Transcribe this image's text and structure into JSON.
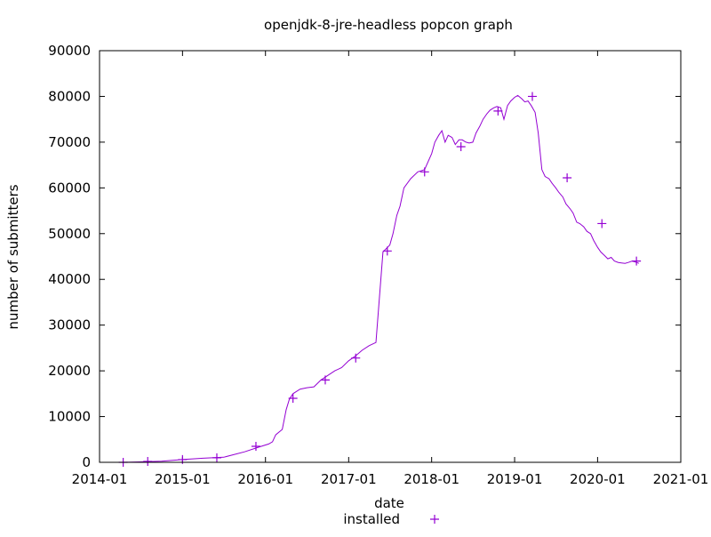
{
  "chart_data": {
    "type": "line",
    "title": "openjdk-8-jre-headless popcon graph",
    "xlabel": "date",
    "ylabel": "number of submitters",
    "xlim": [
      "2014-01",
      "2021-01"
    ],
    "ylim": [
      0,
      90000
    ],
    "x_ticks": [
      "2014-01",
      "2015-01",
      "2016-01",
      "2017-01",
      "2018-01",
      "2019-01",
      "2020-01",
      "2021-01"
    ],
    "y_ticks": [
      0,
      10000,
      20000,
      30000,
      40000,
      50000,
      60000,
      70000,
      80000,
      90000
    ],
    "grid": false,
    "legend": "bottom-center",
    "series": [
      {
        "name": "installed",
        "color": "#9400d3",
        "marker": "plus",
        "x": [
          "2014-04-15",
          "2014-07-01",
          "2014-10-01",
          "2015-01-01",
          "2015-04-01",
          "2015-07-01",
          "2015-10-01",
          "2015-12-01",
          "2016-01-15",
          "2016-02-01",
          "2016-02-15",
          "2016-03-15",
          "2016-04-01",
          "2016-04-15",
          "2016-05-01",
          "2016-06-01",
          "2016-07-01",
          "2016-08-01",
          "2016-09-01",
          "2016-10-01",
          "2016-11-01",
          "2016-12-01",
          "2017-01-01",
          "2017-02-01",
          "2017-03-01",
          "2017-04-01",
          "2017-05-01",
          "2017-06-01",
          "2017-07-01",
          "2017-07-15",
          "2017-08-01",
          "2017-08-15",
          "2017-09-01",
          "2017-10-01",
          "2017-11-01",
          "2017-12-01",
          "2018-01-01",
          "2018-01-15",
          "2018-02-01",
          "2018-02-15",
          "2018-03-01",
          "2018-03-15",
          "2018-04-01",
          "2018-04-15",
          "2018-05-01",
          "2018-05-15",
          "2018-06-01",
          "2018-06-15",
          "2018-07-01",
          "2018-07-15",
          "2018-08-01",
          "2018-08-15",
          "2018-09-01",
          "2018-09-15",
          "2018-10-01",
          "2018-10-15",
          "2018-11-01",
          "2018-11-15",
          "2018-12-01",
          "2018-12-15",
          "2019-01-01",
          "2019-01-15",
          "2019-02-01",
          "2019-02-15",
          "2019-03-01",
          "2019-03-15",
          "2019-04-01",
          "2019-04-15",
          "2019-05-01",
          "2019-05-15",
          "2019-06-01",
          "2019-06-15",
          "2019-07-01",
          "2019-07-15",
          "2019-08-01",
          "2019-08-15",
          "2019-09-01",
          "2019-09-15",
          "2019-10-01",
          "2019-10-15",
          "2019-11-01",
          "2019-11-15",
          "2019-12-01",
          "2019-12-15",
          "2020-01-01",
          "2020-01-15",
          "2020-02-01",
          "2020-02-15",
          "2020-03-01",
          "2020-03-15",
          "2020-04-01",
          "2020-04-15",
          "2020-05-01",
          "2020-05-15",
          "2020-06-01",
          "2020-06-15",
          "2020-07-01"
        ],
        "y": [
          0,
          100,
          250,
          600,
          900,
          1100,
          2300,
          3300,
          4000,
          4500,
          6000,
          7200,
          11500,
          13800,
          15000,
          16000,
          16300,
          16500,
          18000,
          19000,
          20000,
          20700,
          22200,
          23300,
          24500,
          25500,
          26200,
          46000,
          47500,
          50000,
          54000,
          56000,
          60000,
          62000,
          63500,
          64000,
          67500,
          70000,
          71500,
          72500,
          70000,
          71500,
          71000,
          69500,
          70500,
          70500,
          70000,
          69800,
          70000,
          72000,
          73500,
          75000,
          76200,
          77000,
          77500,
          77800,
          77500,
          75000,
          78000,
          79000,
          79800,
          80200,
          79500,
          78800,
          79000,
          78000,
          76500,
          72000,
          64000,
          62500,
          62000,
          61000,
          60000,
          59000,
          58000,
          56500,
          55500,
          54500,
          52500,
          52200,
          51500,
          50500,
          50000,
          48500,
          47000,
          46000,
          45200,
          44500,
          44800,
          44000,
          43700,
          43600,
          43500,
          43700,
          44000,
          43800,
          43500
        ],
        "markers": [
          {
            "x": "2014-04-15",
            "y": 0
          },
          {
            "x": "2014-08-01",
            "y": 200
          },
          {
            "x": "2015-01-01",
            "y": 600
          },
          {
            "x": "2015-06-01",
            "y": 1000
          },
          {
            "x": "2015-11-20",
            "y": 3500
          },
          {
            "x": "2016-05-01",
            "y": 14000
          },
          {
            "x": "2016-09-20",
            "y": 18000
          },
          {
            "x": "2017-02-01",
            "y": 22800
          },
          {
            "x": "2017-06-20",
            "y": 46200
          },
          {
            "x": "2017-12-01",
            "y": 63500
          },
          {
            "x": "2018-05-10",
            "y": 69000
          },
          {
            "x": "2018-10-20",
            "y": 76800
          },
          {
            "x": "2019-03-20",
            "y": 80000
          },
          {
            "x": "2019-08-20",
            "y": 62200
          },
          {
            "x": "2020-01-20",
            "y": 52200
          },
          {
            "x": "2020-06-20",
            "y": 44000
          }
        ]
      }
    ]
  }
}
